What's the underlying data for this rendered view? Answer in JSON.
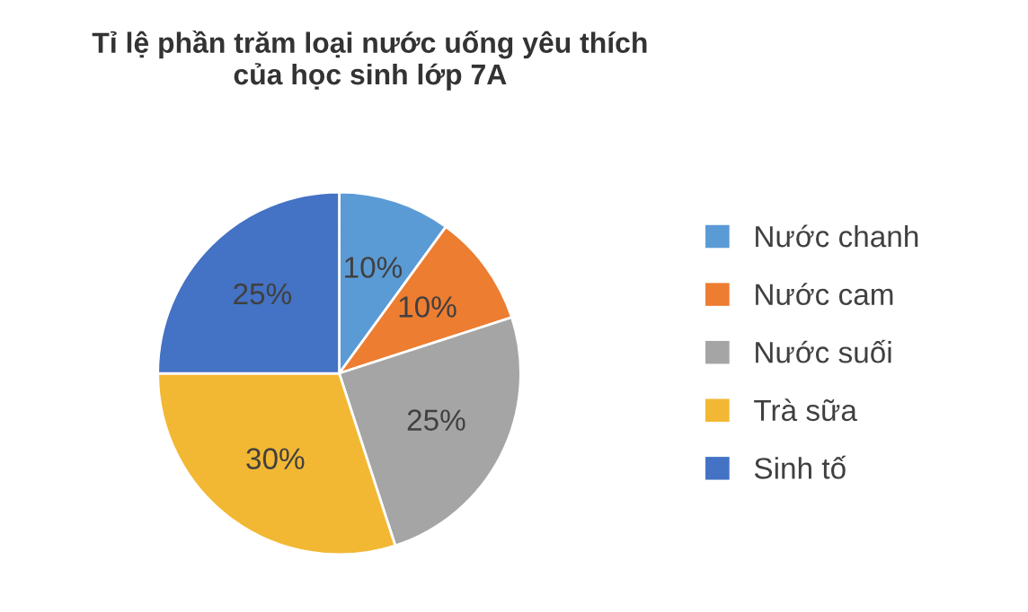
{
  "chart_data": {
    "type": "pie",
    "title": "Tỉ lệ phần trăm loại nước uống yêu thích\ncủa học sinh lớp 7A",
    "categories": [
      "Nước chanh",
      "Nước cam",
      "Nước suối",
      "Trà sữa",
      "Sinh tố"
    ],
    "values": [
      10,
      10,
      25,
      30,
      25
    ],
    "colors": [
      "#5b9bd5",
      "#ed7d31",
      "#a5a5a5",
      "#f2b834",
      "#4472c4"
    ],
    "value_labels": [
      "10%",
      "10%",
      "25%",
      "30%",
      "25%"
    ],
    "legend": "right"
  }
}
